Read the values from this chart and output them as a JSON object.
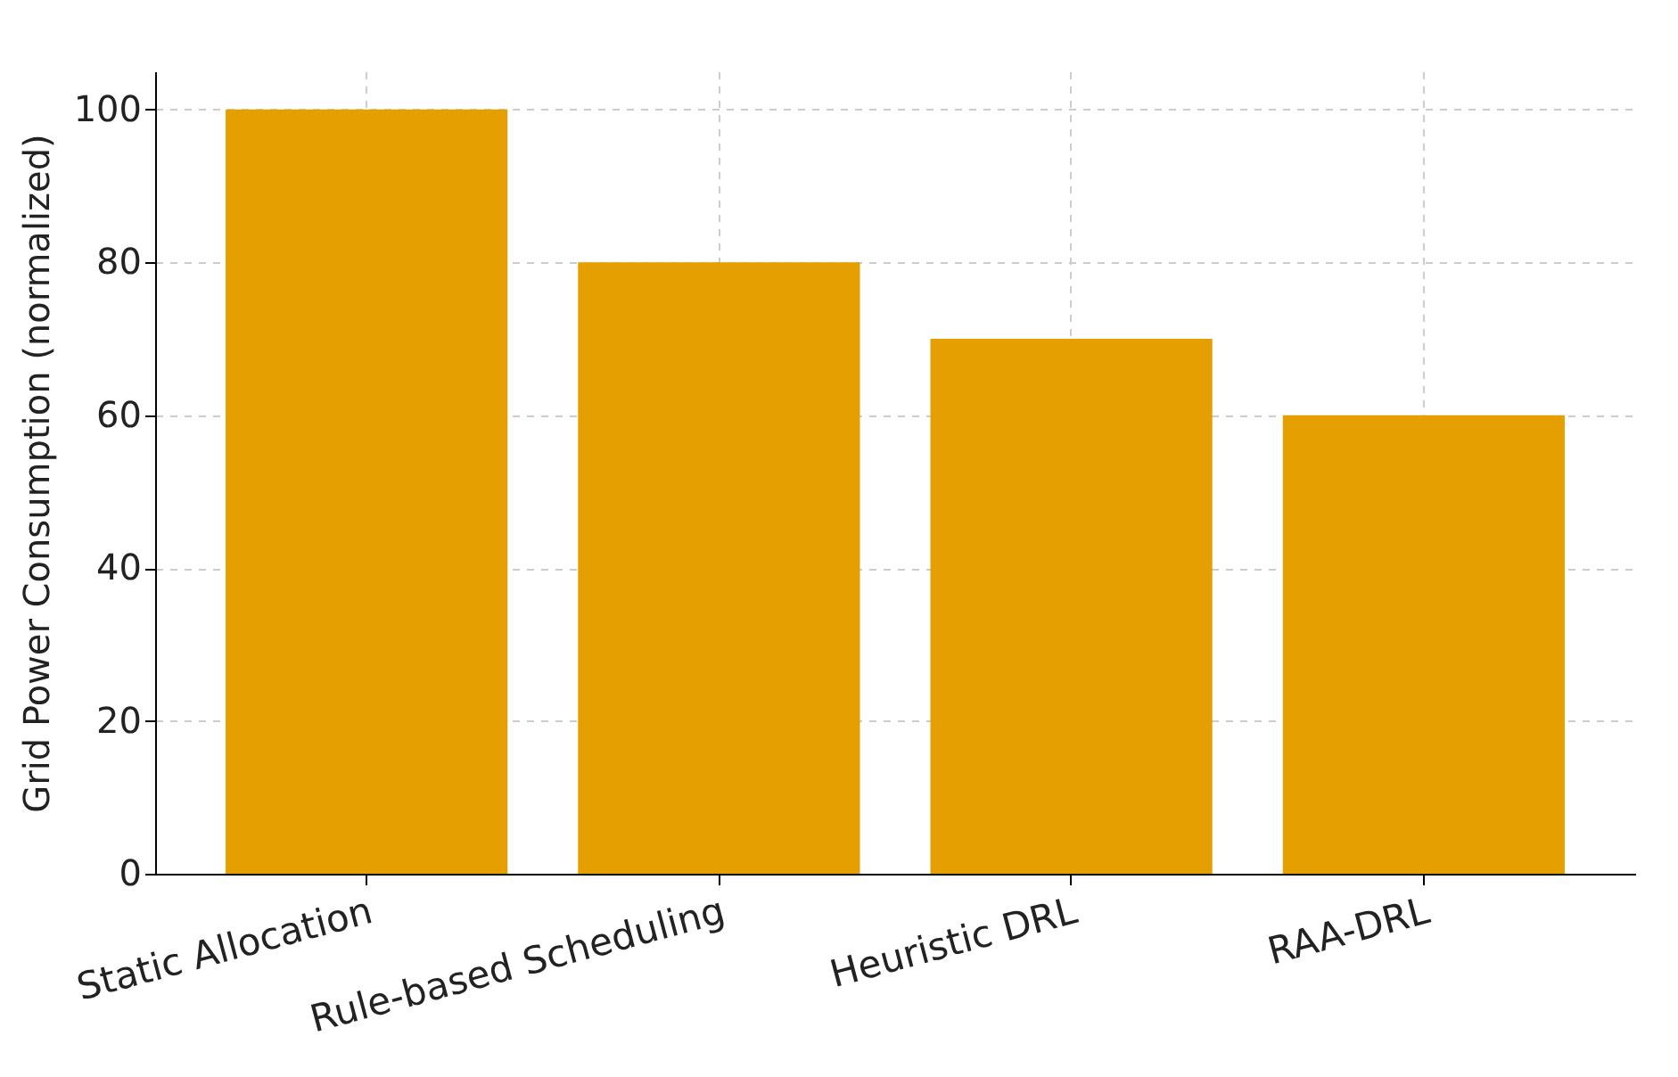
{
  "chart_data": {
    "type": "bar",
    "ylabel": "Grid Power Consumption (normalized)",
    "categories": [
      "Static Allocation",
      "Rule-based Scheduling",
      "Heuristic DRL",
      "RAA-DRL"
    ],
    "values": [
      100,
      80,
      70,
      60
    ],
    "color": "#e69f00",
    "ylim": [
      0,
      105
    ],
    "yticks": [
      0,
      20,
      40,
      60,
      80,
      100
    ],
    "grid": true
  }
}
